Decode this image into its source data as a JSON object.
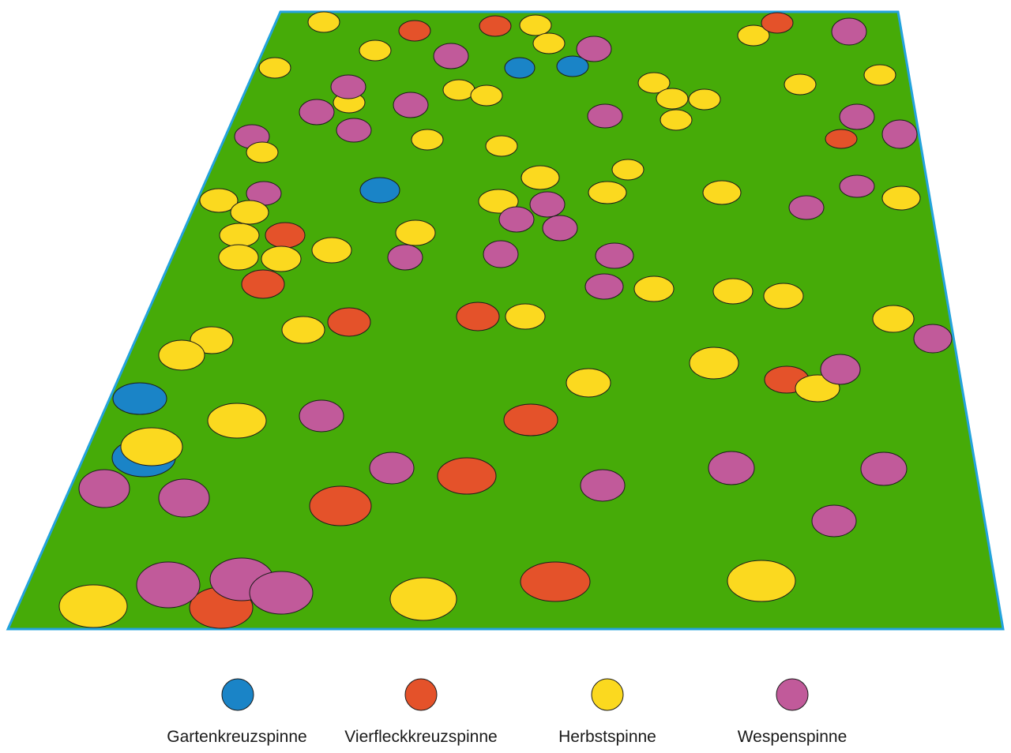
{
  "species": [
    {
      "key": "garten",
      "label": "Gartenkreuzspinne",
      "color": "#1a84c7"
    },
    {
      "key": "vierfleck",
      "label": "Vierfleckkreuzspinne",
      "color": "#e4522a"
    },
    {
      "key": "herbst",
      "label": "Herbstspinne",
      "color": "#fbd91f"
    },
    {
      "key": "wespen",
      "label": "Wespenspinne",
      "color": "#c15a9a"
    }
  ],
  "field": {
    "fill": "#46ab08",
    "border": "#23a3dd"
  },
  "counts": {
    "garten": 6,
    "vierfleck": 20,
    "herbst": 52,
    "wespen": 39
  }
}
